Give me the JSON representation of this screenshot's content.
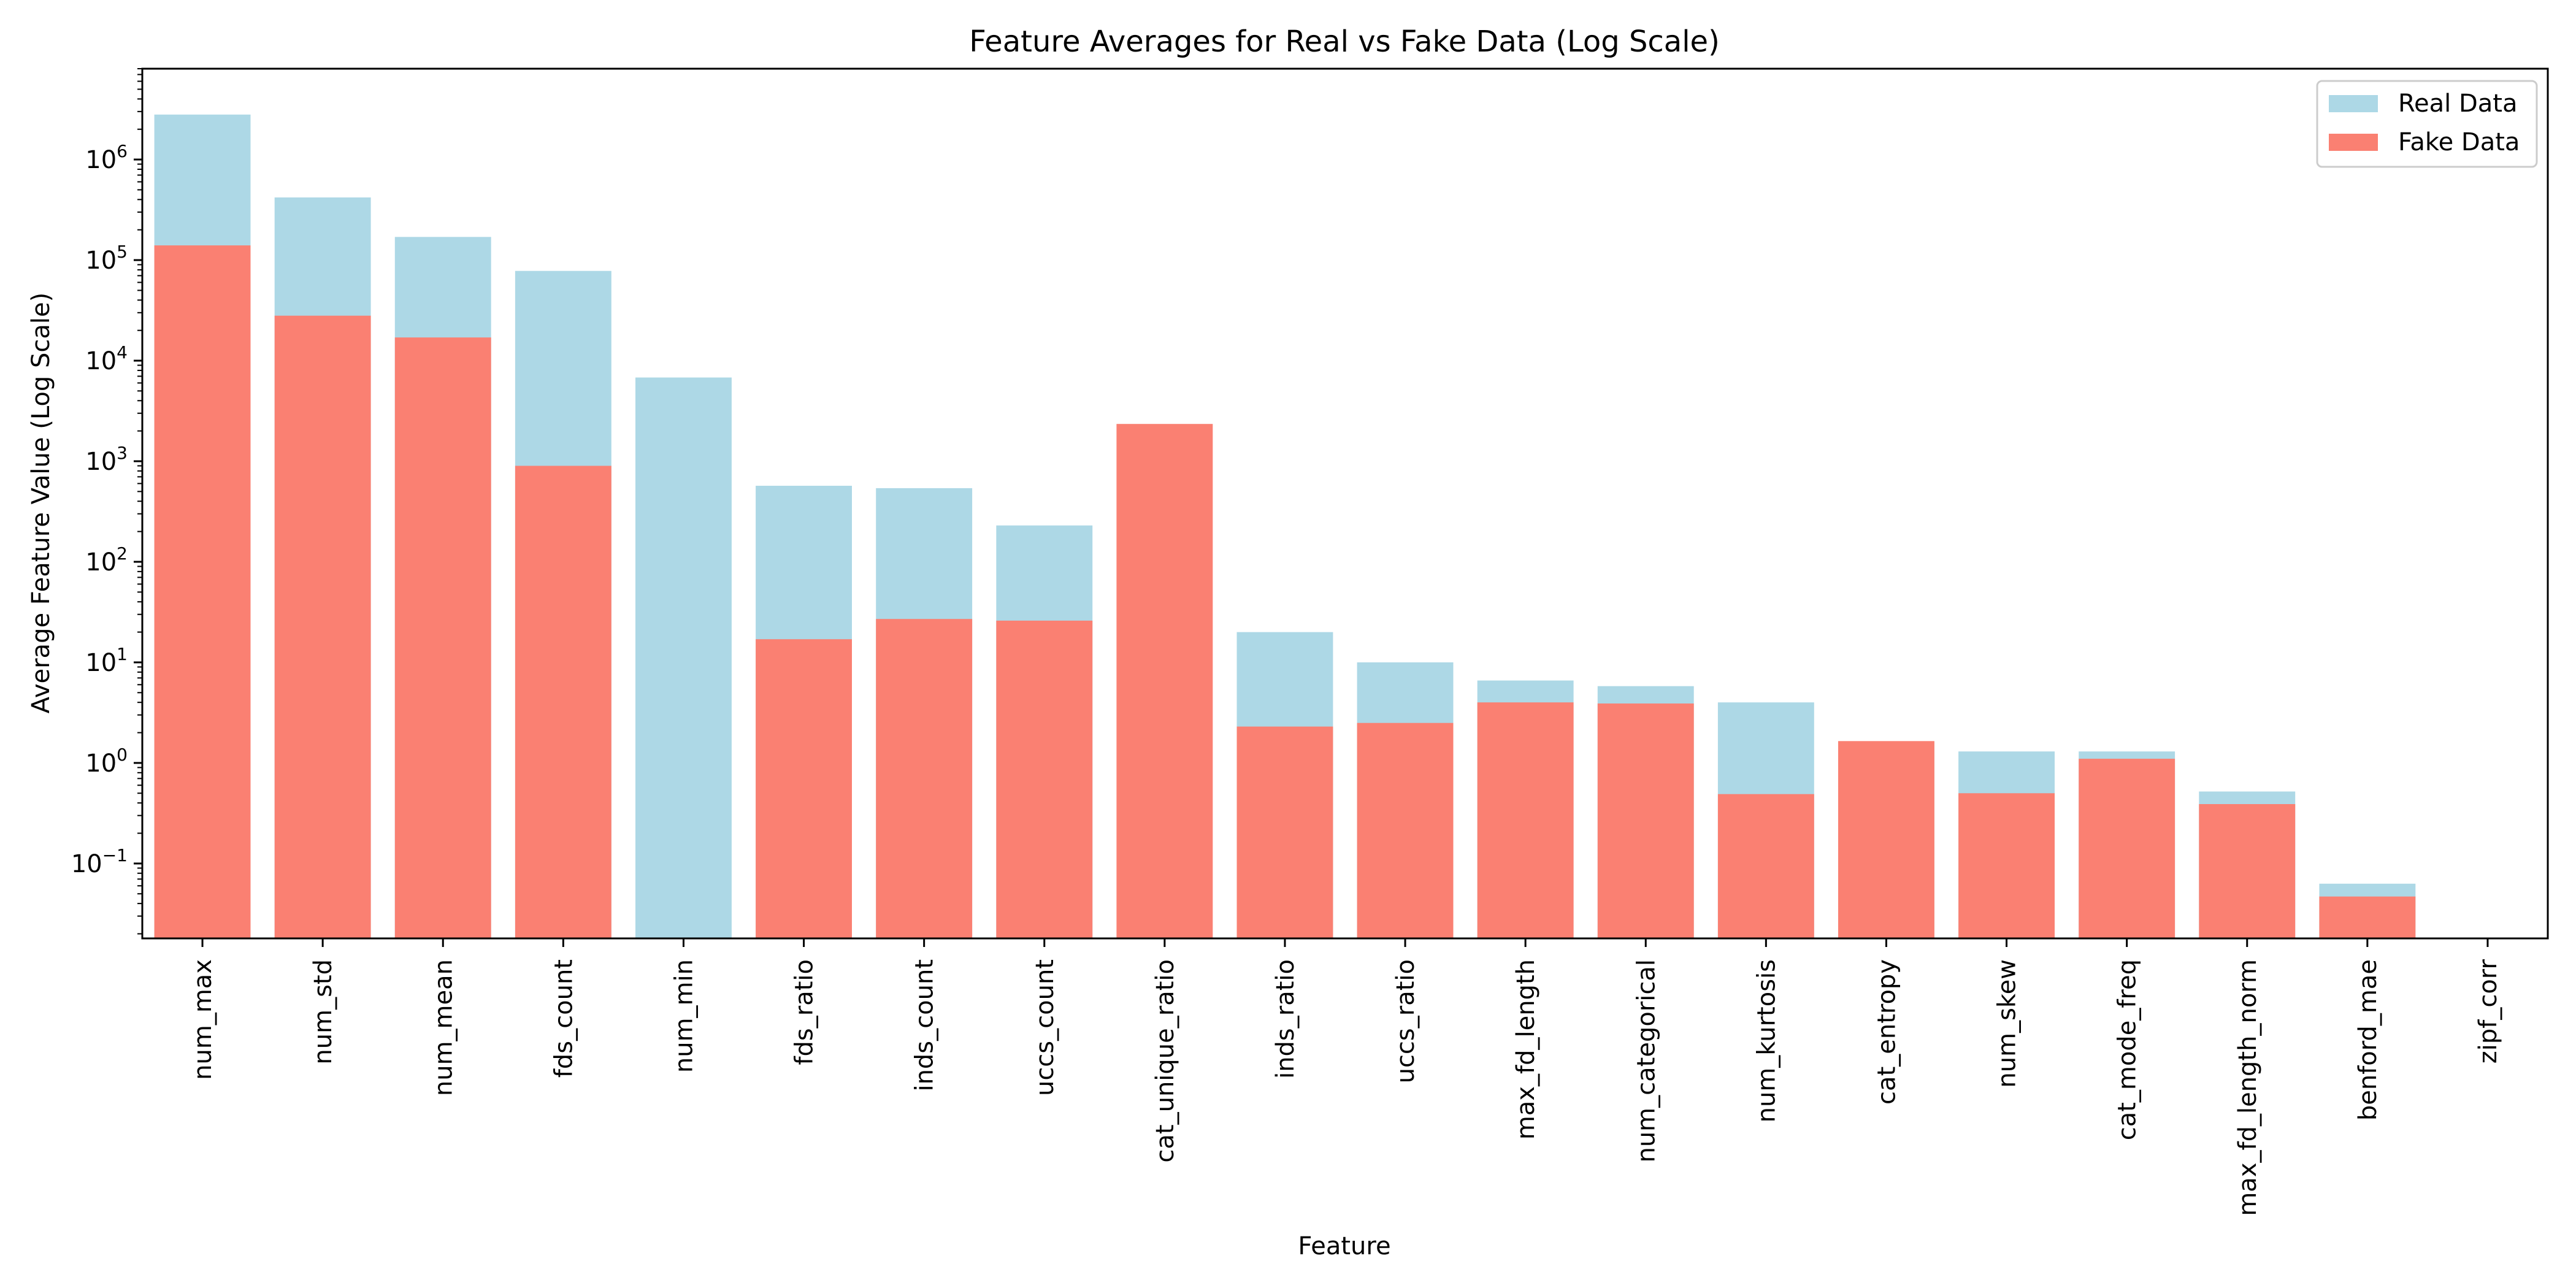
{
  "chart_data": {
    "type": "bar",
    "title": "Feature Averages for Real vs Fake Data (Log Scale)",
    "xlabel": "Feature",
    "ylabel": "Average Feature Value (Log Scale)",
    "yscale": "log",
    "ylim": [
      0.018,
      8000000
    ],
    "ytick_labels": [
      {
        "value": 0.1,
        "base": "10",
        "exp": "−1"
      },
      {
        "value": 1,
        "base": "10",
        "exp": "0"
      },
      {
        "value": 10,
        "base": "10",
        "exp": "1"
      },
      {
        "value": 100,
        "base": "10",
        "exp": "2"
      },
      {
        "value": 1000,
        "base": "10",
        "exp": "3"
      },
      {
        "value": 10000,
        "base": "10",
        "exp": "4"
      },
      {
        "value": 100000,
        "base": "10",
        "exp": "5"
      },
      {
        "value": 1000000,
        "base": "10",
        "exp": "6"
      }
    ],
    "categories": [
      "num_max",
      "num_std",
      "num_mean",
      "fds_count",
      "num_min",
      "fds_ratio",
      "inds_count",
      "uccs_count",
      "cat_unique_ratio",
      "inds_ratio",
      "uccs_ratio",
      "max_fd_length",
      "num_categorical",
      "num_kurtosis",
      "cat_entropy",
      "num_skew",
      "cat_mode_freq",
      "max_fd_length_norm",
      "benford_mae",
      "zipf_corr"
    ],
    "series": [
      {
        "name": "Real Data",
        "color": "#add8e6",
        "values": [
          2800000,
          420000,
          170000,
          78000,
          6800,
          570,
          540,
          230,
          null,
          20,
          10,
          6.6,
          5.8,
          4.0,
          1.6,
          1.3,
          1.3,
          0.52,
          0.063,
          null
        ]
      },
      {
        "name": "Fake Data",
        "color": "#fa8072",
        "values": [
          140000,
          28000,
          17000,
          900,
          null,
          17,
          27,
          26,
          2350,
          2.3,
          2.5,
          4.0,
          3.9,
          0.49,
          1.65,
          0.5,
          1.1,
          0.39,
          0.047,
          null
        ]
      }
    ],
    "grid": false,
    "legend_position": "top-right"
  }
}
